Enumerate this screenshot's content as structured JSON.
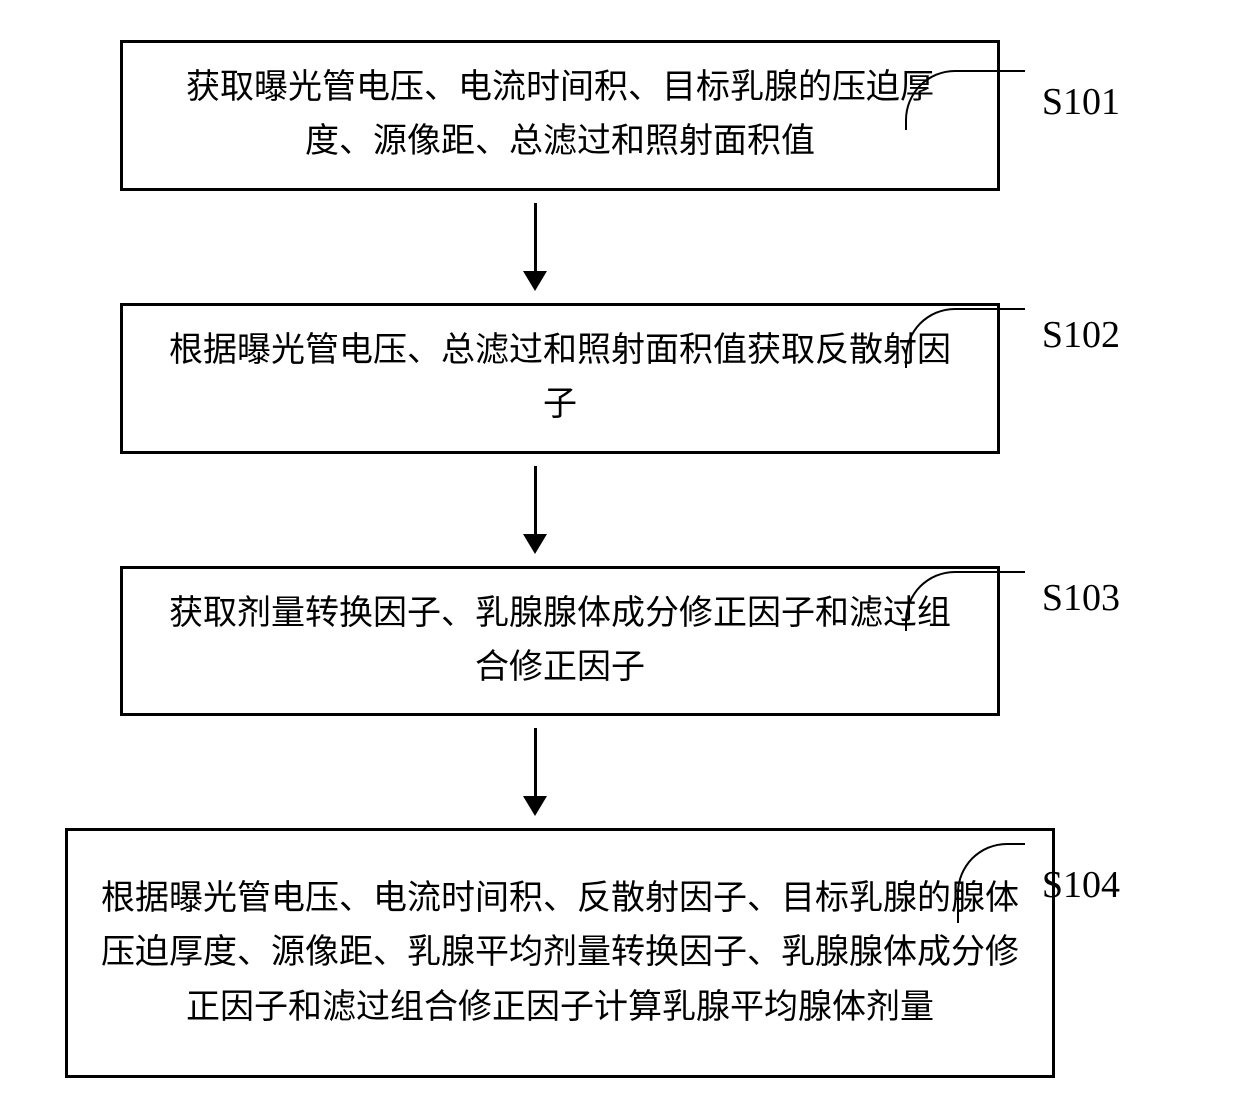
{
  "flowchart": {
    "type": "flowchart",
    "background_color": "#ffffff",
    "border_color": "#000000",
    "border_width": 3,
    "text_color": "#000000",
    "font_size": 34,
    "label_font_size": 38,
    "arrow_color": "#000000",
    "steps": [
      {
        "id": "s101",
        "label": "S101",
        "text": "获取曝光管电压、电流时间积、目标乳腺的压迫厚度、源像距、总滤过和照射面积值"
      },
      {
        "id": "s102",
        "label": "S102",
        "text": "根据曝光管电压、总滤过和照射面积值获取反散射因子"
      },
      {
        "id": "s103",
        "label": "S103",
        "text": "获取剂量转换因子、乳腺腺体成分修正因子和滤过组合修正因子"
      },
      {
        "id": "s104",
        "label": "S104",
        "text": "根据曝光管电压、电流时间积、反散射因子、目标乳腺的腺体压迫厚度、源像距、乳腺平均剂量转换因子、乳腺腺体成分修正因子和滤过组合修正因子计算乳腺平均腺体剂量"
      }
    ]
  }
}
